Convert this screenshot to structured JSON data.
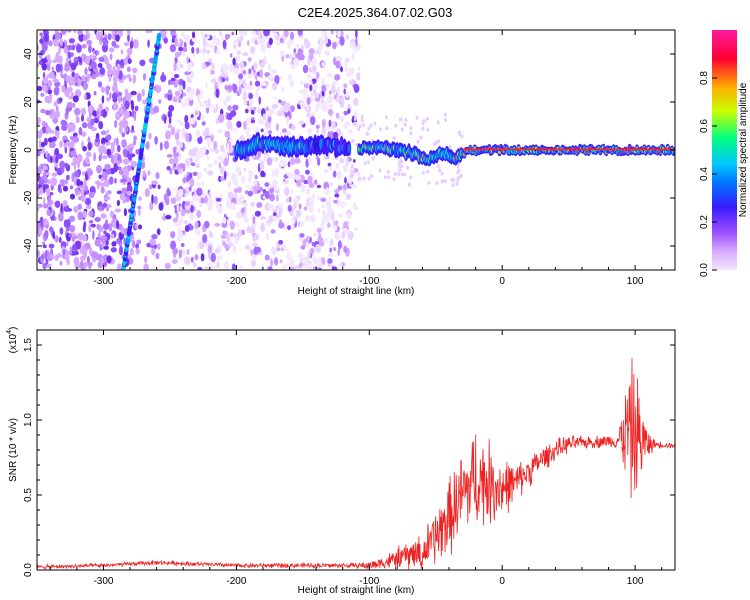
{
  "figure": {
    "title": "C2E4.2025.364.07.02.G03"
  },
  "chart_data": [
    {
      "type": "heatmap",
      "title": "C2E4.2025.364.07.02.G03",
      "xlabel": "Height of straight line (km)",
      "ylabel": "Frequency (Hz)",
      "xlim": [
        -350,
        130
      ],
      "ylim": [
        -50,
        50
      ],
      "xticks": [
        -300,
        -200,
        -100,
        0,
        100
      ],
      "xticklabels": [
        "-300",
        "-200",
        "-100",
        "0",
        "100"
      ],
      "yticks": [
        -40,
        -20,
        0,
        20,
        40
      ],
      "yticklabels": [
        "-40",
        "-20",
        "0",
        "20",
        "40"
      ],
      "colorbar": {
        "label": "Normalized spectral amplitude",
        "range": [
          0.0,
          1.0
        ],
        "ticks": [
          0.0,
          0.2,
          0.4,
          0.6,
          0.8
        ],
        "ticklabels": [
          "0.0",
          "0.2",
          "0.4",
          "0.6",
          "0.8"
        ]
      },
      "features": {
        "noise_region_height_km": [
          -350,
          -115
        ],
        "diagonal_track": {
          "start": {
            "height_km": -285,
            "freq_hz": -50
          },
          "end": {
            "height_km": -258,
            "freq_hz": 48
          }
        },
        "signal_track_freq_hz": [
          [
            -200,
            0
          ],
          [
            -180,
            3
          ],
          [
            -160,
            1
          ],
          [
            -140,
            2
          ],
          [
            -110,
            1
          ],
          [
            -100,
            1
          ],
          [
            -80,
            0
          ],
          [
            -65,
            -2
          ],
          [
            -55,
            -4
          ],
          [
            -45,
            -1
          ],
          [
            -35,
            -3
          ],
          [
            -25,
            0
          ],
          [
            0,
            0
          ],
          [
            50,
            0
          ],
          [
            90,
            0
          ],
          [
            130,
            0
          ]
        ]
      }
    },
    {
      "type": "line",
      "xlabel": "Height of straight line (km)",
      "ylabel": "SNR (10 * v/v)",
      "yscale_label": "(x10",
      "yscale_exponent": "4",
      "xlim": [
        -350,
        130
      ],
      "ylim": [
        0,
        1.6
      ],
      "xticks": [
        -300,
        -200,
        -100,
        0,
        100
      ],
      "xticklabels": [
        "-300",
        "-200",
        "-100",
        "0",
        "100"
      ],
      "yticks": [
        0,
        0.5,
        1.0,
        1.5
      ],
      "yticklabels": [
        "0.0",
        "0.5",
        "1.0",
        "1.5"
      ],
      "series": [
        {
          "name": "SNR",
          "color": "#ee2222",
          "envelope_x": [
            -350,
            -300,
            -260,
            -200,
            -150,
            -100,
            -85,
            -70,
            -60,
            -50,
            -40,
            -30,
            -20,
            -10,
            0,
            10,
            20,
            30,
            40,
            50,
            60,
            80,
            85,
            90,
            95,
            100,
            105,
            110,
            130
          ],
          "envelope_y": [
            0.02,
            0.03,
            0.05,
            0.03,
            0.03,
            0.03,
            0.06,
            0.1,
            0.12,
            0.22,
            0.35,
            0.5,
            0.62,
            0.58,
            0.55,
            0.58,
            0.66,
            0.74,
            0.8,
            0.84,
            0.85,
            0.86,
            0.86,
            0.88,
            0.95,
            0.9,
            0.86,
            0.84,
            0.83
          ],
          "noise_amp_x": [
            -350,
            -110,
            -90,
            -60,
            -40,
            -20,
            -5,
            10,
            30,
            60,
            85,
            92,
            97,
            102,
            108,
            115,
            130
          ],
          "noise_amp_y": [
            0.015,
            0.02,
            0.05,
            0.15,
            0.3,
            0.4,
            0.3,
            0.15,
            0.1,
            0.05,
            0.05,
            0.3,
            0.55,
            0.5,
            0.15,
            0.03,
            0.02
          ]
        }
      ]
    }
  ],
  "palette": {
    "axis": "#000000",
    "line": "#ee2222",
    "colormap": [
      "#f3e6ff",
      "#d6a8ff",
      "#9a4dff",
      "#3a1cff",
      "#00c8ff",
      "#00ff7f",
      "#c8ff00",
      "#ffb000",
      "#ff0030",
      "#ff1aa0"
    ]
  }
}
